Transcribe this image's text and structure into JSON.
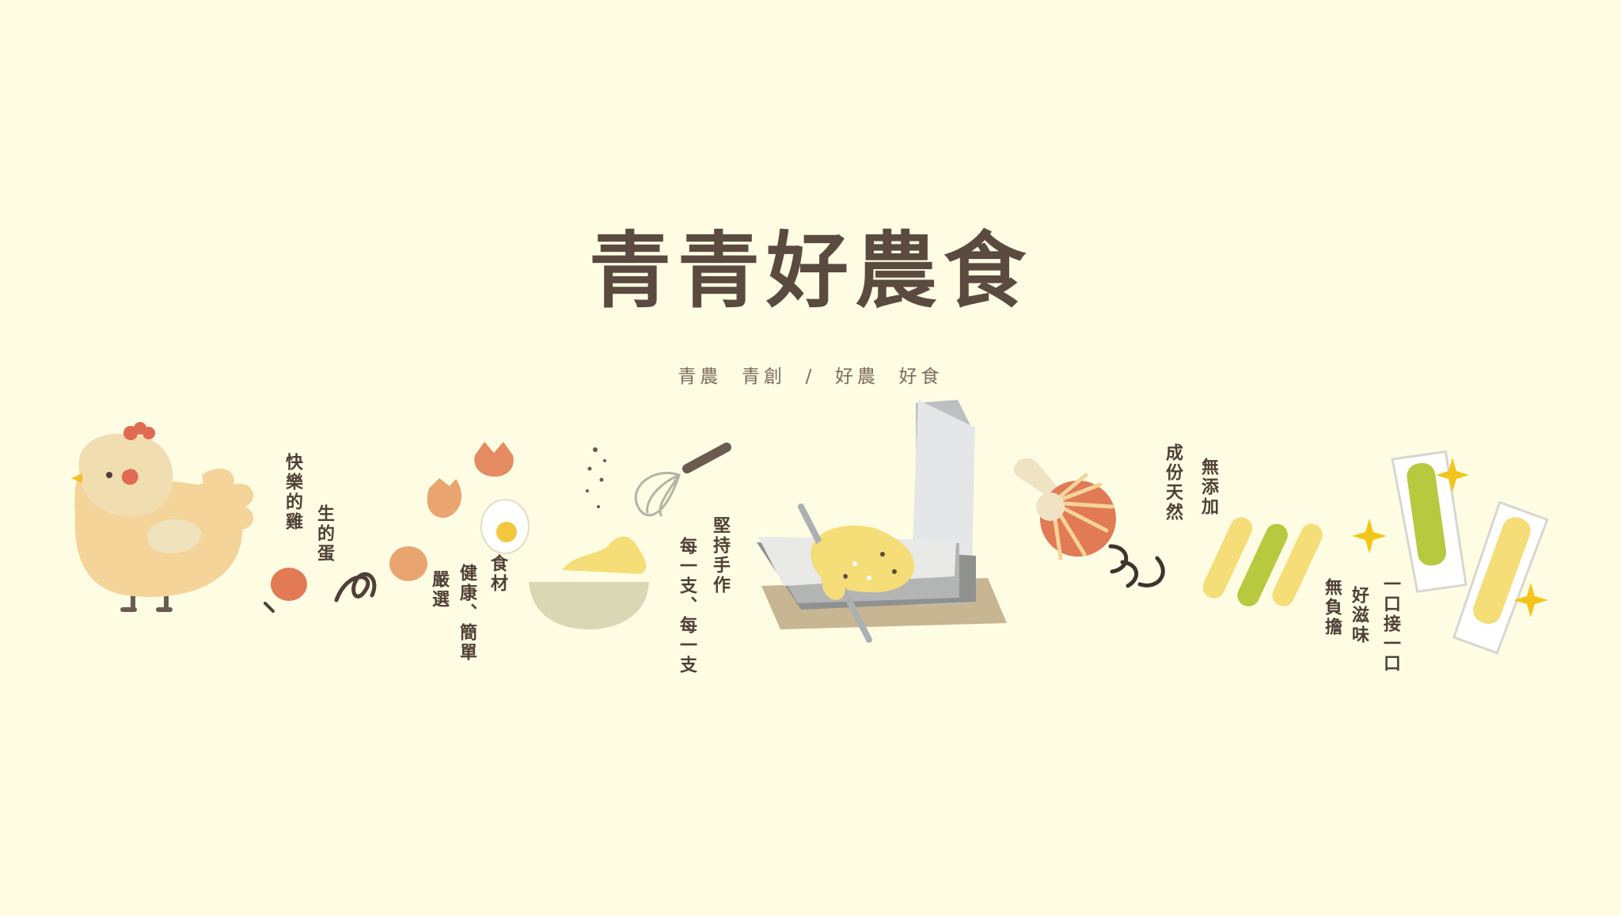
{
  "brand": {
    "title": "青青好農食",
    "subtitle": "青農  青創  /  好農  好食"
  },
  "captions": {
    "chicken_1": "快樂的雞",
    "chicken_2": "生的蛋",
    "ingredients_1": "食材",
    "ingredients_2": "健康、簡單",
    "ingredients_3": "嚴選",
    "handmade_1": "堅持手作",
    "handmade_2": "每一支、每一支",
    "natural_1": "成份天然",
    "natural_2": "無添加",
    "bite_1": "一口接一口",
    "bite_2": "好滋味",
    "bite_3": "無負擔"
  },
  "colors": {
    "background": "#fefde4",
    "title": "#5b4a3f",
    "chicken": "#f5d49a",
    "egg": "#e17a55",
    "roll_yellow": "#f5dd78",
    "roll_green": "#b6c93f",
    "sparkle": "#f3c51b"
  }
}
